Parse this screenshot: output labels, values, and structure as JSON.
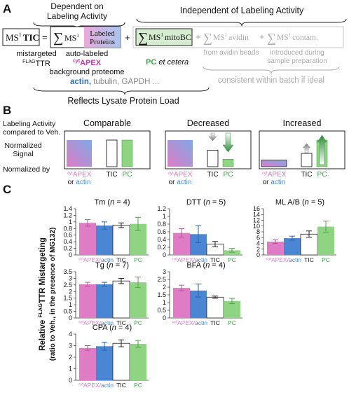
{
  "panel_letters": {
    "a": "A",
    "b": "B",
    "c": "C"
  },
  "colors": {
    "pink": "#e07bc6",
    "blue": "#4a86d4",
    "green": "#8fd483",
    "grey": "#aaaaaa",
    "axis": "#333333",
    "light_grey": "#bbbbbb",
    "light_box": "#cfe4c8"
  },
  "panel_a": {
    "dependent_title_line1": "Dependent on",
    "dependent_title_line2": "Labeling Activity",
    "independent_title": "Independent of Labeling Activity",
    "tic_lhs_prefix": "MS",
    "tic_lhs_sup": "1",
    "tic_lhs_bold": "TIC",
    "equals": "=",
    "sum_symbol": "∑",
    "ms_prefix": "MS",
    "ms_sup": "1",
    "labeled_proteins_line1": "Labeled",
    "labeled_proteins_line2": "Proteins",
    "plus": "+",
    "mitobc": "mitoBC",
    "avidin_term": "MS",
    "avidin_word": "avidin",
    "contam_word": "contam.",
    "mistargeted_line1": "mistargeted",
    "mistargeted_sup": "FLAG",
    "mistargeted_line2": "TTR",
    "auto_labeled": "auto-labeled",
    "cyt_sup": "cyt",
    "apex": "APEX",
    "background_proteome": "background proteome",
    "actin": "actin,",
    "rest_list": " tubulin, GAPDH ...",
    "pc": "PC",
    "et_cetera": " et cetera",
    "from_avidin_beads": "from avidin beads",
    "introduced_line1": "introduced during",
    "introduced_line2": "sample preparation",
    "consistent": "consistent within batch if ideal",
    "reflects": "Reflects Lysate Protein Load"
  },
  "panel_b": {
    "row_label_1_line1": "Labeling Activity",
    "row_label_1_line2": "compared to Veh.",
    "row_label_2_line1": "Normalized",
    "row_label_2_line2": "Signal",
    "row_label_3": "Normalized by",
    "columns": [
      {
        "title": "Comparable",
        "levels": {
          "apex": 1.0,
          "tic": 1.0,
          "pc": 1.0
        },
        "arrow": "none"
      },
      {
        "title": "Decreased",
        "levels": {
          "apex": 1.0,
          "tic": 0.62,
          "pc": 0.28
        },
        "arrow": "down"
      },
      {
        "title": "Increased",
        "levels": {
          "apex": 0.25,
          "tic": 0.5,
          "pc": 1.0
        },
        "arrow": "up"
      }
    ],
    "cat_apex_sup": "cyt",
    "cat_apex": "APEX",
    "cat_or": "or ",
    "cat_actin": "actin",
    "cat_tic": "TIC",
    "cat_pc": "PC"
  },
  "panel_c": {
    "ylabel_line1_pre": "Relative ",
    "ylabel_line1_sup": "FLAG",
    "ylabel_line1_post": "TTR Mistargeting",
    "ylabel_line2": "(ratio to Veh., in the presence of MG132)",
    "xcat_apex_sup": "cyt",
    "xcat_apex": "APEX/",
    "xcat_actin": "actin",
    "xcat_tic": "TIC",
    "xcat_pc": "PC"
  },
  "chart_data": [
    {
      "type": "bar",
      "title": "Tm (n = 4)",
      "title_name": "Tm",
      "title_n": "4",
      "ylim": [
        0,
        1.4
      ],
      "yticks": [
        0,
        0.2,
        0.4,
        0.6,
        0.8,
        1.0,
        1.2,
        1.4
      ],
      "ytick_labels": [
        "0",
        "0.2",
        "0.4",
        "0.6",
        "0.8",
        "1",
        "1.2",
        "1.4"
      ],
      "categories": [
        "cytAPEX",
        "actin",
        "TIC",
        "PC"
      ],
      "values": [
        0.97,
        0.89,
        0.9,
        0.94
      ],
      "errors": [
        0.1,
        0.11,
        0.07,
        0.2
      ]
    },
    {
      "type": "bar",
      "title": "DTT (n = 5)",
      "title_name": "DTT",
      "title_n": "5",
      "ylim": [
        0,
        1.2
      ],
      "yticks": [
        0,
        0.2,
        0.4,
        0.6,
        0.8,
        1.0,
        1.2
      ],
      "ytick_labels": [
        "0",
        "0.2",
        "0.4",
        "0.6",
        "0.8",
        "1",
        "1.2"
      ],
      "categories": [
        "cytAPEX",
        "actin",
        "TIC",
        "PC"
      ],
      "values": [
        0.57,
        0.54,
        0.28,
        0.12
      ],
      "errors": [
        0.11,
        0.22,
        0.07,
        0.05
      ]
    },
    {
      "type": "bar",
      "title": "ML A/B (n = 5)",
      "title_name": "ML A/B",
      "title_n": "5",
      "ylim": [
        0,
        16
      ],
      "yticks": [
        0,
        2,
        4,
        6,
        8,
        10,
        12,
        14,
        16
      ],
      "ytick_labels": [
        "0",
        "2",
        "4",
        "6",
        "8",
        "10",
        "12",
        "14",
        "16"
      ],
      "categories": [
        "cytAPEX",
        "actin",
        "TIC",
        "PC"
      ],
      "values": [
        4.6,
        5.8,
        7.2,
        9.8
      ],
      "errors": [
        0.6,
        0.7,
        1.1,
        1.9
      ]
    },
    {
      "type": "bar",
      "title": "Tg (n = 7)",
      "title_name": "Tg",
      "title_n": "7",
      "ylim": [
        0,
        3.5
      ],
      "yticks": [
        0,
        0.5,
        1.0,
        1.5,
        2.0,
        2.5,
        3.0,
        3.5
      ],
      "ytick_labels": [
        "0",
        "0.5",
        "1",
        "1.5",
        "2",
        "2.5",
        "3",
        "3.5"
      ],
      "categories": [
        "cytAPEX",
        "actin",
        "TIC",
        "PC"
      ],
      "values": [
        2.55,
        2.55,
        2.8,
        2.7
      ],
      "errors": [
        0.15,
        0.15,
        0.2,
        0.4
      ]
    },
    {
      "type": "bar",
      "title": "BFA (n = 4)",
      "title_name": "BFA",
      "title_n": "4",
      "ylim": [
        0,
        3.0
      ],
      "yticks": [
        0,
        0.5,
        1.0,
        1.5,
        2.0,
        2.5,
        3.0
      ],
      "ytick_labels": [
        "0",
        "0.5",
        "1",
        "1.5",
        "2",
        "2.5",
        "3"
      ],
      "categories": [
        "cytAPEX",
        "actin",
        "TIC",
        "PC"
      ],
      "values": [
        1.95,
        1.78,
        1.35,
        1.1
      ],
      "errors": [
        0.18,
        0.42,
        0.07,
        0.17
      ]
    },
    {
      "type": "bar",
      "title": "CPA (n = 4)",
      "title_name": "CPA",
      "title_n": "4",
      "ylim": [
        0,
        4
      ],
      "yticks": [
        0,
        1,
        2,
        3,
        4
      ],
      "ytick_labels": [
        "0",
        "1",
        "2",
        "3",
        "4"
      ],
      "categories": [
        "cytAPEX",
        "actin",
        "TIC",
        "PC"
      ],
      "values": [
        2.8,
        2.95,
        3.2,
        3.15
      ],
      "errors": [
        0.2,
        0.35,
        0.3,
        0.3
      ]
    }
  ]
}
